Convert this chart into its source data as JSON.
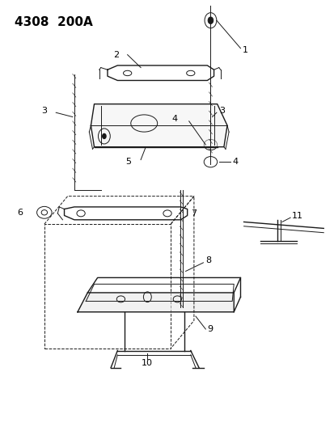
{
  "title": "4308  200A",
  "background_color": "#ffffff",
  "line_color": "#1a1a1a",
  "label_color": "#000000",
  "figsize": [
    4.14,
    5.33
  ],
  "dpi": 100
}
